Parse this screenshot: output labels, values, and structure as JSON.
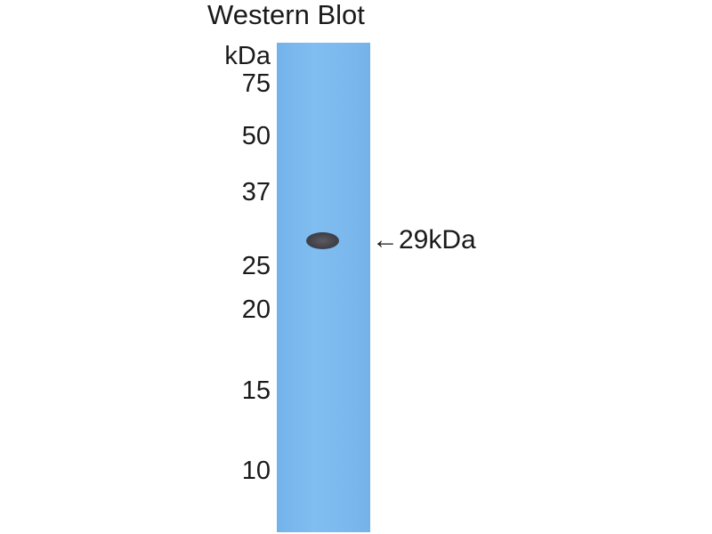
{
  "title": "Western Blot",
  "unit_label": "kDa",
  "markers": [
    "75",
    "50",
    "37",
    "25",
    "20",
    "15",
    "10"
  ],
  "band_label": "29kDa",
  "arrow_glyph": "←",
  "colors": {
    "lane": "#7cb9ee",
    "band": "#3f4048"
  }
}
